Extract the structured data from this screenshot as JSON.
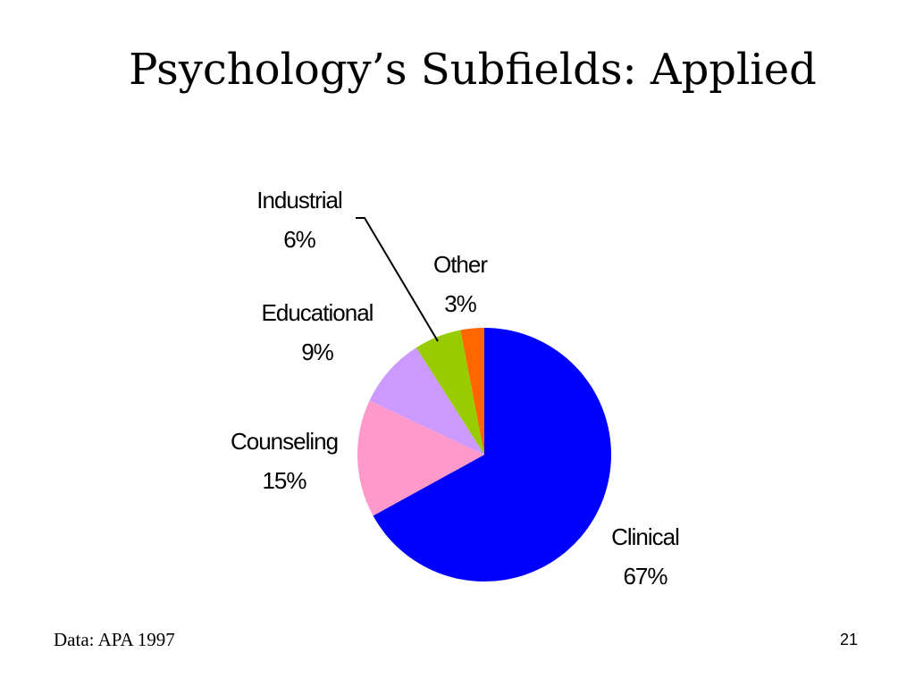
{
  "slide": {
    "title": "Psychology’s Subfields: Applied",
    "source": "Data: APA 1997",
    "page_number": "21"
  },
  "chart_data": {
    "type": "pie",
    "title": "",
    "start_angle_deg": 0,
    "direction": "clockwise",
    "slices": [
      {
        "label": "Clinical",
        "value": 67,
        "value_label": "67%",
        "color": "#0000FF"
      },
      {
        "label": "Counseling",
        "value": 15,
        "value_label": "15%",
        "color": "#FF99CC"
      },
      {
        "label": "Educational",
        "value": 9,
        "value_label": "9%",
        "color": "#CC99FF"
      },
      {
        "label": "Industrial",
        "value": 6,
        "value_label": "6%",
        "color": "#99CC00"
      },
      {
        "label": "Other",
        "value": 3,
        "value_label": "3%",
        "color": "#FF6600"
      }
    ]
  }
}
